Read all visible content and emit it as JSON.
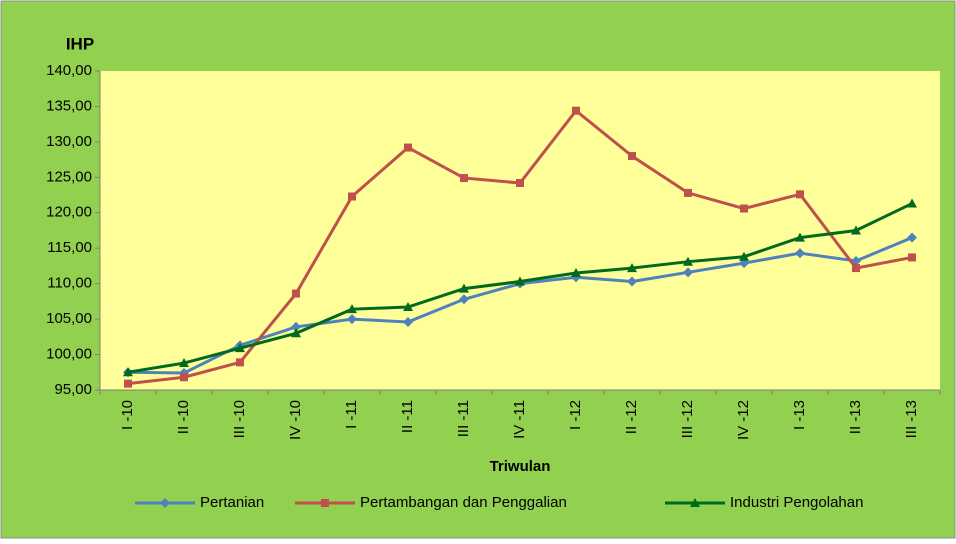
{
  "chart_data": {
    "type": "line",
    "y_label": "IHP",
    "x_label": "Triwulan",
    "categories": [
      "I -10",
      "II -10",
      "III -10",
      "IV -10",
      "I -11",
      "II -11",
      "III -11",
      "IV -11",
      "I -12",
      "II -12",
      "III -12",
      "IV -12",
      "I -13",
      "II -13",
      "III -13"
    ],
    "series": [
      {
        "name": "Pertanian",
        "color": "#4f81bd",
        "marker": "diamond",
        "values": [
          97.5,
          97.4,
          101.3,
          103.9,
          105.0,
          104.6,
          107.8,
          110.0,
          110.9,
          110.3,
          111.6,
          112.9,
          114.3,
          113.2,
          116.5
        ]
      },
      {
        "name": "Pertambangan dan Penggalian",
        "color": "#c0504d",
        "marker": "square",
        "values": [
          95.9,
          96.8,
          98.9,
          108.6,
          122.3,
          129.2,
          124.9,
          124.2,
          134.4,
          128.0,
          122.8,
          120.6,
          122.6,
          112.2,
          113.7
        ]
      },
      {
        "name": "Industri Pengolahan",
        "color": "#006a1e",
        "marker": "triangle",
        "values": [
          97.5,
          98.8,
          100.9,
          103.0,
          106.4,
          106.7,
          109.3,
          110.3,
          111.5,
          112.2,
          113.1,
          113.8,
          116.5,
          117.5,
          121.3
        ]
      }
    ],
    "ylim": [
      95,
      140
    ],
    "yticks": [
      {
        "value": 95,
        "label": "95,00"
      },
      {
        "value": 100,
        "label": "100,00"
      },
      {
        "value": 105,
        "label": "105,00"
      },
      {
        "value": 110,
        "label": "110,00"
      },
      {
        "value": 115,
        "label": "115,00"
      },
      {
        "value": 120,
        "label": "120,00"
      },
      {
        "value": 125,
        "label": "125,00"
      },
      {
        "value": 130,
        "label": "130,00"
      },
      {
        "value": 135,
        "label": "135,00"
      },
      {
        "value": 140,
        "label": "140,00"
      }
    ],
    "legend": "bottom"
  }
}
